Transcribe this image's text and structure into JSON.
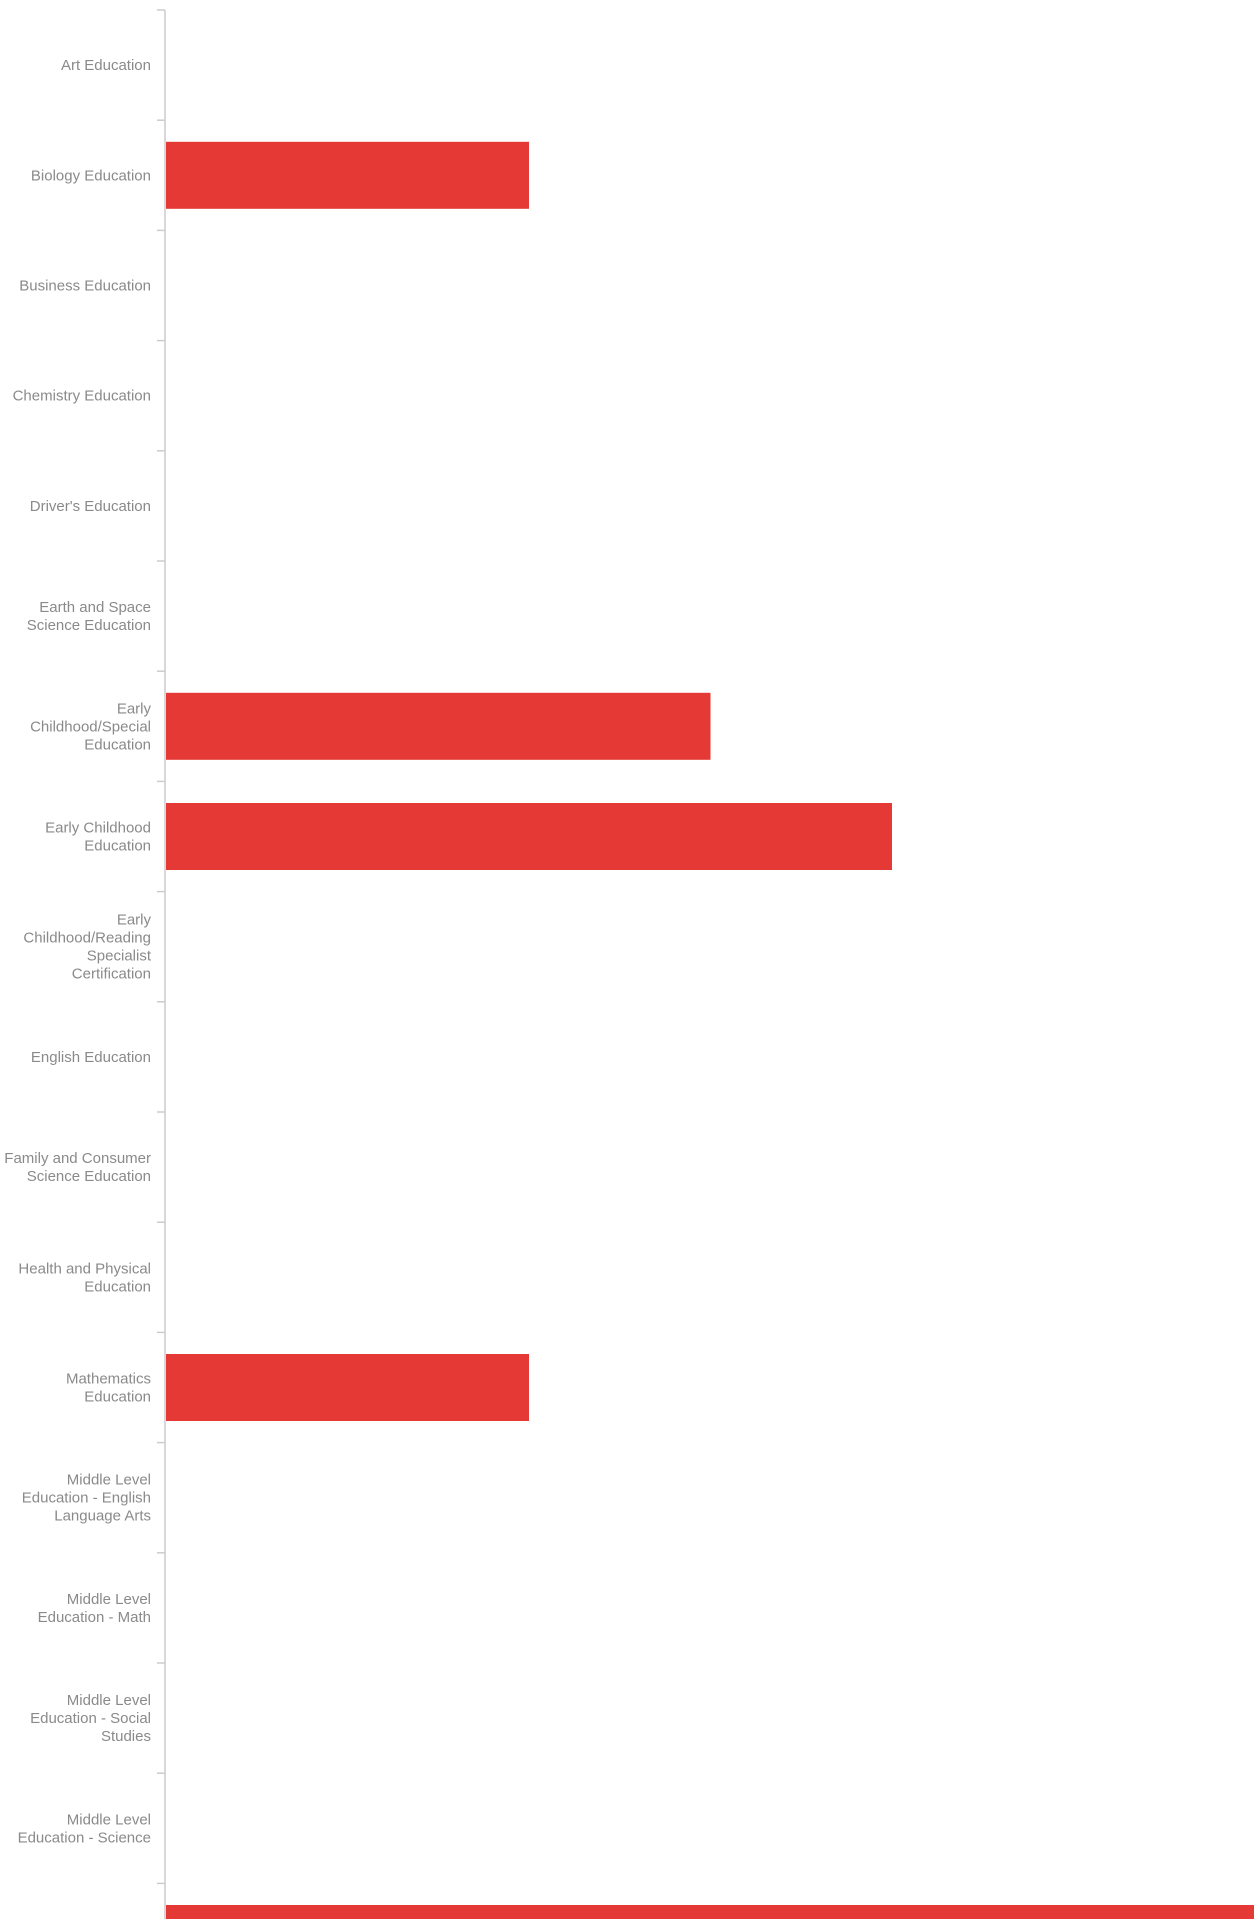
{
  "chart_data": {
    "type": "bar",
    "orientation": "horizontal",
    "categories": [
      "Art Education",
      "Biology Education",
      "Business Education",
      "Chemistry Education",
      "Driver's Education",
      "Earth and Space Science Education",
      "Early Childhood/Special Education",
      "Early Childhood Education",
      "Early Childhood/Reading Specialist Certification",
      "English Education",
      "Family and Consumer Science Education",
      "Health and Physical Education",
      "Mathematics Education",
      "Middle Level Education - English Language Arts",
      "Middle Level Education - Math",
      "Middle Level Education - Social Studies",
      "Middle Level Education - Science",
      ""
    ],
    "category_lines": [
      [
        "Art Education"
      ],
      [
        "Biology Education"
      ],
      [
        "Business Education"
      ],
      [
        "Chemistry Education"
      ],
      [
        "Driver's Education"
      ],
      [
        "Earth and Space",
        "Science Education"
      ],
      [
        "Early",
        "Childhood/Special",
        "Education"
      ],
      [
        "Early Childhood",
        "Education"
      ],
      [
        "Early",
        "Childhood/Reading",
        "Specialist",
        "Certification"
      ],
      [
        "English Education"
      ],
      [
        "Family and Consumer",
        "Science Education"
      ],
      [
        "Health and Physical",
        "Education"
      ],
      [
        "Mathematics",
        "Education"
      ],
      [
        "Middle Level",
        "Education - English",
        "Language Arts"
      ],
      [
        "Middle Level",
        "Education - Math"
      ],
      [
        "Middle Level",
        "Education - Social",
        "Studies"
      ],
      [
        "Middle Level",
        "Education - Science"
      ],
      []
    ],
    "values": [
      0,
      2,
      0,
      0,
      0,
      0,
      3,
      4,
      0,
      0,
      0,
      0,
      2,
      0,
      0,
      0,
      0,
      6
    ],
    "xlim": [
      0,
      6
    ],
    "bar_color": "#e53935",
    "axis_color": "#cccccc",
    "label_color": "#8a8a8a",
    "grid": false,
    "legend": "none",
    "title": "",
    "xlabel": "",
    "ylabel": ""
  }
}
